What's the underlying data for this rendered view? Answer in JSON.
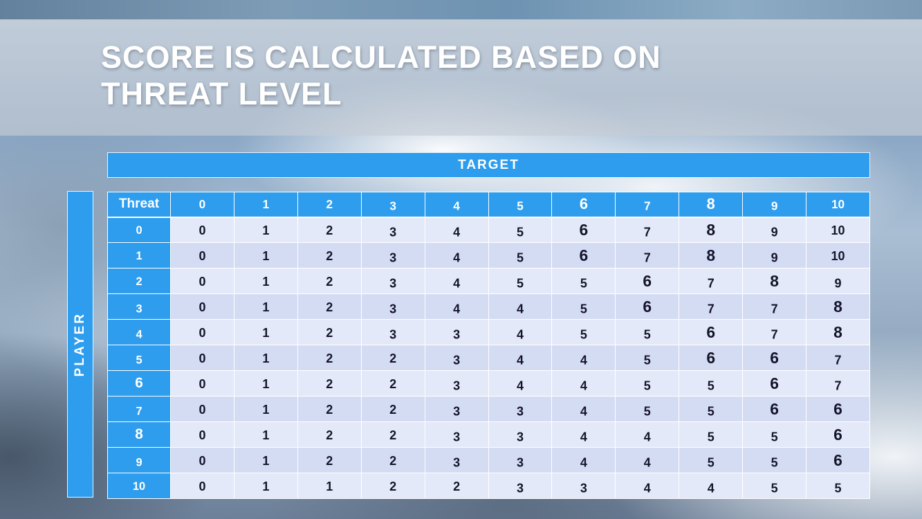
{
  "slide": {
    "title": "SCORE IS CALCULATED BASED ON THREAT LEVEL"
  },
  "matrix": {
    "target_label": "TARGET",
    "player_label": "PLAYER",
    "corner_label": "Threat",
    "column_headers": [
      "0",
      "1",
      "2",
      "3",
      "4",
      "5",
      "6",
      "7",
      "8",
      "9",
      "10"
    ],
    "rows": [
      {
        "threat": "0",
        "values": [
          "0",
          "1",
          "2",
          "3",
          "4",
          "5",
          "6",
          "7",
          "8",
          "9",
          "10"
        ]
      },
      {
        "threat": "1",
        "values": [
          "0",
          "1",
          "2",
          "3",
          "4",
          "5",
          "6",
          "7",
          "8",
          "9",
          "10"
        ]
      },
      {
        "threat": "2",
        "values": [
          "0",
          "1",
          "2",
          "3",
          "4",
          "5",
          "5",
          "6",
          "7",
          "8",
          "9"
        ]
      },
      {
        "threat": "3",
        "values": [
          "0",
          "1",
          "2",
          "3",
          "4",
          "4",
          "5",
          "6",
          "7",
          "7",
          "8"
        ]
      },
      {
        "threat": "4",
        "values": [
          "0",
          "1",
          "2",
          "3",
          "3",
          "4",
          "5",
          "5",
          "6",
          "7",
          "8"
        ]
      },
      {
        "threat": "5",
        "values": [
          "0",
          "1",
          "2",
          "2",
          "3",
          "4",
          "4",
          "5",
          "6",
          "6",
          "7"
        ]
      },
      {
        "threat": "6",
        "values": [
          "0",
          "1",
          "2",
          "2",
          "3",
          "4",
          "4",
          "5",
          "5",
          "6",
          "7"
        ]
      },
      {
        "threat": "7",
        "values": [
          "0",
          "1",
          "2",
          "2",
          "3",
          "3",
          "4",
          "5",
          "5",
          "6",
          "6"
        ]
      },
      {
        "threat": "8",
        "values": [
          "0",
          "1",
          "2",
          "2",
          "3",
          "3",
          "4",
          "4",
          "5",
          "5",
          "6"
        ]
      },
      {
        "threat": "9",
        "values": [
          "0",
          "1",
          "2",
          "2",
          "3",
          "3",
          "4",
          "4",
          "5",
          "5",
          "6"
        ]
      },
      {
        "threat": "10",
        "values": [
          "0",
          "1",
          "1",
          "2",
          "2",
          "3",
          "3",
          "4",
          "4",
          "5",
          "5"
        ]
      }
    ]
  },
  "colors": {
    "header_blue": "#2e9dee",
    "row_light": "#e4e9f9",
    "row_dark": "#d4dcf3",
    "title_text": "#ffffff"
  }
}
